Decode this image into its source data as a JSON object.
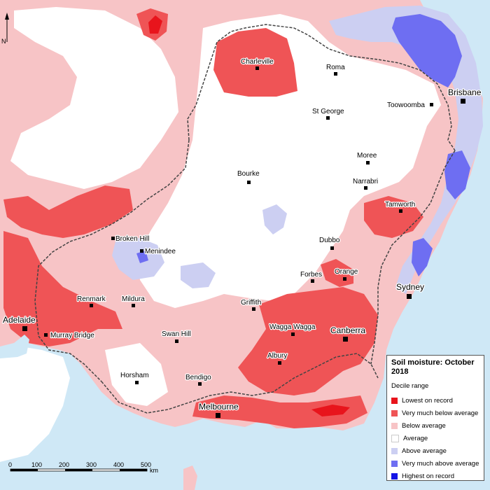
{
  "legend": {
    "title": "Soil moisture: October 2018",
    "subtitle": "Decile range",
    "items": [
      {
        "label": "Lowest on record",
        "color": "#e8141c"
      },
      {
        "label": "Very much below average",
        "color": "#ef5456"
      },
      {
        "label": "Below average",
        "color": "#f7c4c6"
      },
      {
        "label": "Average",
        "color": "#ffffff"
      },
      {
        "label": "Above average",
        "color": "#cccff2"
      },
      {
        "label": "Very much above average",
        "color": "#6e6ef2"
      },
      {
        "label": "Highest on record",
        "color": "#1414e6"
      }
    ]
  },
  "places": {
    "charleville": "Charleville",
    "roma": "Roma",
    "brisbane": "Brisbane",
    "toowoomba": "Toowoomba",
    "st_george": "St George",
    "moree": "Moree",
    "narrabri": "Narrabri",
    "bourke": "Bourke",
    "tamworth": "Tamworth",
    "broken_hill": "Broken Hill",
    "menindee": "Menindee",
    "dubbo": "Dubbo",
    "forbes": "Forbes",
    "orange": "Orange",
    "sydney": "Sydney",
    "renmark": "Renmark",
    "mildura": "Mildura",
    "griffith": "Griffith",
    "adelaide": "Adelaide",
    "murray_bridge": "Murray Bridge",
    "swan_hill": "Swan Hill",
    "wagga_wagga": "Wagga Wagga",
    "canberra": "Canberra",
    "albury": "Albury",
    "horsham": "Horsham",
    "bendigo": "Bendigo",
    "melbourne": "Melbourne"
  },
  "scale": {
    "ticks": [
      "0",
      "100",
      "200",
      "300",
      "400",
      "500"
    ],
    "unit": "km"
  },
  "north_label": "N"
}
